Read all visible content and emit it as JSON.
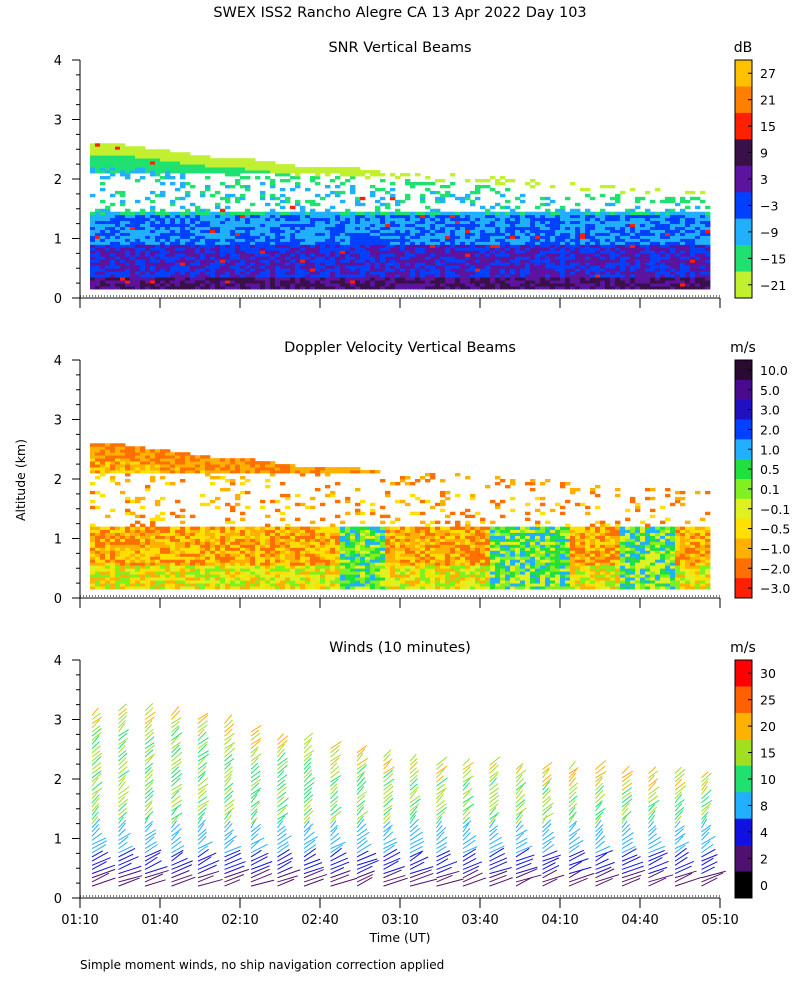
{
  "title": "SWEX ISS2 Rancho Alegre CA  13 Apr 2022 Day 103",
  "footnote": "Simple moment winds, no ship navigation correction applied",
  "y_axis_label": "Altitude (km)",
  "x_axis_label": "Time (UT)",
  "x_ticks": [
    "01:10",
    "01:40",
    "02:10",
    "02:40",
    "03:10",
    "03:40",
    "04:10",
    "04:40",
    "05:10"
  ],
  "y_ticks": [
    "0",
    "1",
    "2",
    "3",
    "4"
  ],
  "chart_data": [
    {
      "type": "heatmap",
      "title": "SNR Vertical Beams",
      "xlabel": "Time (UT)",
      "ylabel": "Altitude (km)",
      "xlim": [
        "01:10",
        "05:10"
      ],
      "ylim": [
        0,
        4
      ],
      "colorbar": {
        "unit": "dB",
        "ticks": [
          "27",
          "21",
          "15",
          "9",
          "3",
          "−3",
          "−9",
          "−15",
          "−21"
        ],
        "colors": [
          "#ffc000",
          "#ff8000",
          "#ff2000",
          "#3a1048",
          "#5c14a0",
          "#0040ff",
          "#20b0ff",
          "#20e070",
          "#c0f030"
        ]
      },
      "data_top_km": [
        2.55,
        2.55,
        2.45,
        2.35,
        2.3,
        2.2,
        2.2,
        2.1,
        2.1,
        2.05,
        2.0,
        1.95,
        1.9,
        1.85,
        1.8,
        1.75
      ],
      "clear_band_km": [
        1.45,
        2.1
      ],
      "description_levels": "low altitudes (0-1 km) strongest SNR near 0.3 km; weak values near top of data"
    },
    {
      "type": "heatmap",
      "title": "Doppler Velocity Vertical Beams",
      "xlabel": "Time (UT)",
      "ylabel": "Altitude (km)",
      "xlim": [
        "01:10",
        "05:10"
      ],
      "ylim": [
        0,
        4
      ],
      "colorbar": {
        "unit": "m/s",
        "ticks": [
          "10.0",
          "5.0",
          "3.0",
          "2.0",
          "1.0",
          "0.5",
          "0.1",
          "−0.1",
          "−0.5",
          "−1.0",
          "−2.0",
          "−3.0"
        ],
        "colors": [
          "#2a0a30",
          "#4a0a90",
          "#2010c0",
          "#0040ff",
          "#20b0ff",
          "#20e040",
          "#80f020",
          "#e0f020",
          "#ffe000",
          "#ffb000",
          "#ff7000",
          "#ff2000"
        ]
      },
      "data_top_km": [
        2.55,
        2.55,
        2.45,
        2.35,
        2.3,
        2.2,
        2.2,
        2.1,
        2.1,
        2.05,
        2.0,
        1.95,
        1.9,
        1.85,
        1.8,
        1.75
      ],
      "clear_band_km": [
        1.2,
        2.1
      ]
    },
    {
      "type": "scatter",
      "title": "Winds (10 minutes)",
      "xlabel": "Time (UT)",
      "ylabel": "Altitude (km)",
      "xlim": [
        "01:10",
        "05:10"
      ],
      "ylim": [
        0,
        4
      ],
      "colorbar": {
        "unit": "m/s",
        "ticks": [
          "30",
          "25",
          "20",
          "15",
          "10",
          "8",
          "4",
          "2",
          "0"
        ],
        "colors": [
          "#ff0000",
          "#ff6000",
          "#ffb000",
          "#a0e020",
          "#20e070",
          "#20b0ff",
          "#1010e0",
          "#501070",
          "#000000"
        ]
      },
      "profiles_time": [
        "01:10",
        "01:20",
        "01:30",
        "01:40",
        "01:50",
        "02:00",
        "02:10",
        "02:20",
        "02:30",
        "02:40",
        "02:50",
        "03:00",
        "03:10",
        "03:20",
        "03:30",
        "03:40",
        "03:50",
        "04:00",
        "04:10",
        "04:20",
        "04:30",
        "04:40",
        "04:50",
        "05:00"
      ],
      "profile_top_km": [
        3.1,
        3.15,
        3.2,
        3.1,
        3.05,
        2.95,
        2.8,
        2.7,
        2.65,
        2.55,
        2.45,
        2.4,
        2.35,
        2.3,
        2.3,
        2.25,
        2.2,
        2.2,
        2.2,
        2.2,
        2.15,
        2.15,
        2.1,
        2.05
      ]
    }
  ]
}
